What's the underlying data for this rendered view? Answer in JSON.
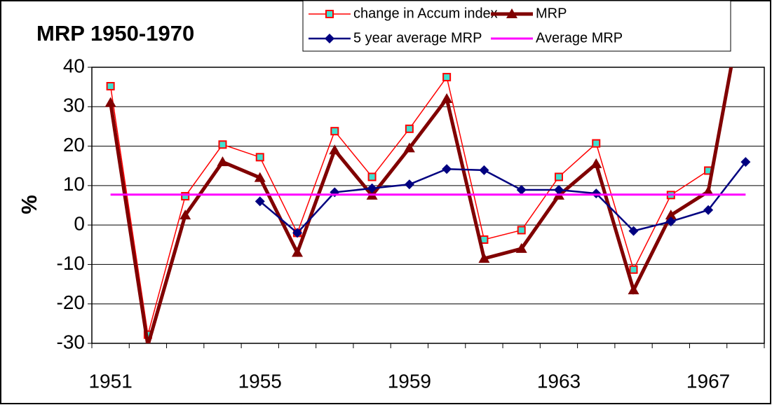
{
  "chart_data": {
    "type": "line",
    "title": "MRP 1950-1970",
    "y_label": "%",
    "categories": [
      "1951",
      null,
      null,
      null,
      "1955",
      null,
      null,
      null,
      "1959",
      null,
      null,
      null,
      "1963",
      null,
      null,
      null,
      "1967",
      null
    ],
    "series": [
      {
        "name": "change in Accum index",
        "color": "#ff0000",
        "marker": "square",
        "values": [
          35.2,
          -27.8,
          7.3,
          20.4,
          17.2,
          -2,
          23.8,
          12.2,
          24.4,
          37.5,
          -3.7,
          -1.3,
          12.2,
          20.7,
          -11.3,
          7.6,
          13.8,
          null
        ]
      },
      {
        "name": "MRP",
        "color": "#800000",
        "marker": "triangle",
        "values": [
          31,
          -30.5,
          2.5,
          16,
          12,
          -7,
          19,
          7.5,
          19.5,
          32,
          -8.5,
          -6,
          7.5,
          15.5,
          -16.5,
          2.5,
          8.5,
          60
        ]
      },
      {
        "name": "5 year average MRP",
        "color": "#000080",
        "marker": "diamond",
        "values": [
          null,
          null,
          null,
          null,
          6,
          -2,
          8.3,
          9.3,
          10.3,
          14.2,
          13.9,
          8.9,
          8.9,
          8,
          -1.5,
          0.9,
          3.8,
          16
        ]
      },
      {
        "name": "Average MRP",
        "color": "#ff00ff",
        "marker": "none",
        "values": [
          7.7,
          7.7,
          7.7,
          7.7,
          7.7,
          7.7,
          7.7,
          7.7,
          7.7,
          7.7,
          7.7,
          7.7,
          7.7,
          7.7,
          7.7,
          7.7,
          7.7,
          7.7
        ]
      }
    ],
    "ylim": [
      -30,
      40
    ],
    "yticks": [
      -30,
      -20,
      -10,
      0,
      10,
      20,
      30,
      40
    ],
    "grid": true
  }
}
